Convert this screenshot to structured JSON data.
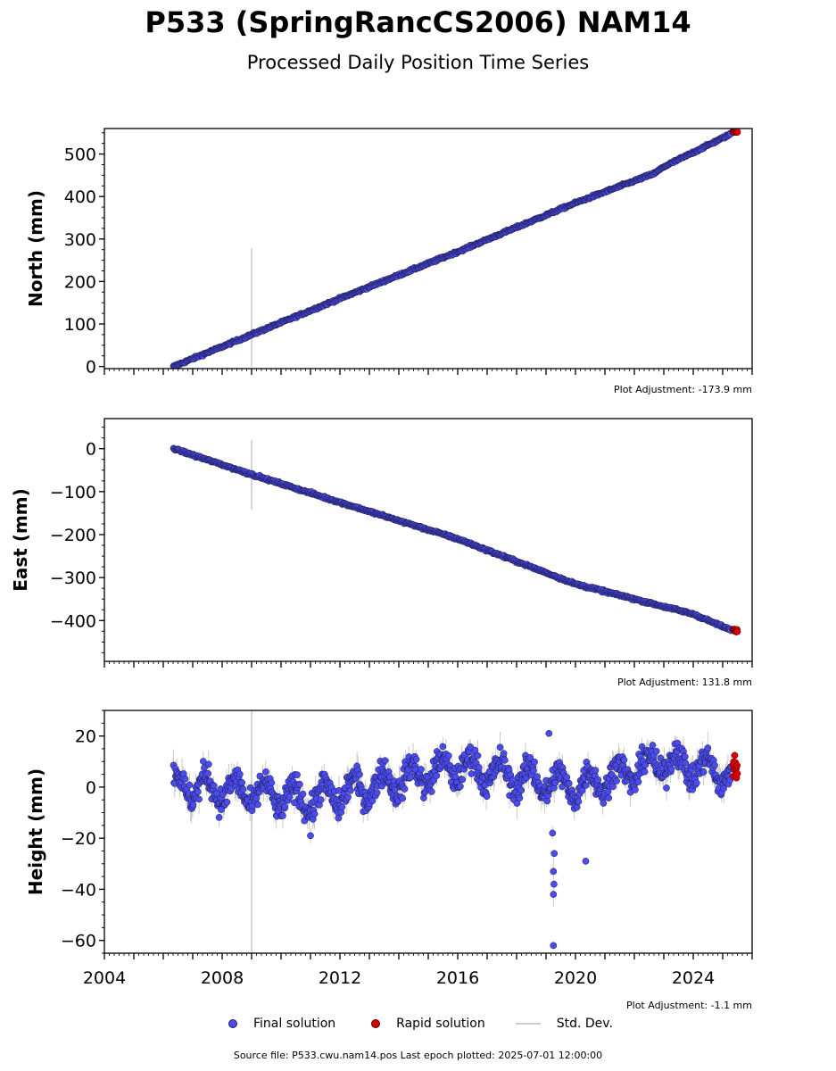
{
  "page": {
    "title": "P533 (SpringRancCS2006) NAM14",
    "subtitle": "Processed Daily Position Time Series",
    "source_text": "Source file: P533.cwu.nam14.pos  Last epoch plotted: 2025-07-01 12:00:00"
  },
  "legend": {
    "final": "Final solution",
    "rapid": "Rapid solution",
    "std": "Std. Dev."
  },
  "colors": {
    "final": "#4b4bf0",
    "final_edge": "#1a1a40",
    "rapid": "#dd0000",
    "std": "#bbbbbb"
  },
  "chart_data": [
    {
      "type": "scatter",
      "ylabel": "North (mm)",
      "adjustment": "Plot Adjustment: -173.9 mm",
      "xlim": [
        2004,
        2026
      ],
      "ylim": [
        -5,
        560
      ],
      "yticks": [
        0,
        100,
        200,
        300,
        400,
        500
      ],
      "ytick_labels": [
        "0",
        "100",
        "200",
        "300",
        "400",
        "500"
      ],
      "show_xtick_labels": false,
      "series": [
        {
          "name": "Final solution",
          "kind": "trend",
          "x": [
            2006.35,
            2009.0,
            2012.0,
            2016.0,
            2020.0,
            2022.7,
            2023.0,
            2025.3
          ],
          "y": [
            0,
            75,
            160,
            270,
            385,
            455,
            470,
            548
          ],
          "noise": 2.5
        },
        {
          "name": "Rapid solution",
          "kind": "cluster",
          "x": [
            2025.35,
            2025.5
          ],
          "y": [
            551,
            556
          ]
        }
      ],
      "std_outliers": [
        {
          "x": 2009.0,
          "y_low": 0,
          "y_high": 278
        }
      ],
      "std_typical": 3
    },
    {
      "type": "scatter",
      "ylabel": "East (mm)",
      "adjustment": "Plot Adjustment: 131.8 mm",
      "xlim": [
        2004,
        2026
      ],
      "ylim": [
        -495,
        70
      ],
      "yticks": [
        0,
        -100,
        -200,
        -300,
        -400
      ],
      "ytick_labels": [
        "0",
        "−100",
        "−200",
        "−300",
        "−400"
      ],
      "show_xtick_labels": false,
      "series": [
        {
          "name": "Final solution",
          "kind": "trend",
          "x": [
            2006.35,
            2009.0,
            2012.0,
            2016.0,
            2020.0,
            2024.0,
            2025.3
          ],
          "y": [
            0,
            -60,
            -125,
            -210,
            -315,
            -385,
            -423
          ],
          "noise": 2.5
        },
        {
          "name": "Rapid solution",
          "kind": "cluster",
          "x": [
            2025.35,
            2025.5
          ],
          "y": [
            -420,
            -427
          ]
        }
      ],
      "std_outliers": [
        {
          "x": 2009.0,
          "y_low": -142,
          "y_high": 20
        }
      ],
      "std_typical": 3
    },
    {
      "type": "scatter",
      "ylabel": "Height (mm)",
      "adjustment": "Plot Adjustment: -1.1 mm",
      "xlim": [
        2004,
        2026
      ],
      "ylim": [
        -65,
        30
      ],
      "yticks": [
        20,
        0,
        -20,
        -40,
        -60
      ],
      "ytick_labels": [
        "20",
        "0",
        "−20",
        "−40",
        "−60"
      ],
      "show_xtick_labels": true,
      "xticks": [
        2004,
        2008,
        2012,
        2016,
        2020,
        2024
      ],
      "xtick_labels": [
        "2004",
        "2008",
        "2012",
        "2016",
        "2020",
        "2024"
      ],
      "series": [
        {
          "name": "Final solution",
          "kind": "seasonal",
          "x_start": 2006.35,
          "x_end": 2025.3,
          "amplitude": 5,
          "spread": 5,
          "trend": [
            [
              2006.35,
              1
            ],
            [
              2011,
              -5
            ],
            [
              2016,
              8
            ],
            [
              2020,
              0
            ],
            [
              2023,
              10
            ],
            [
              2025.3,
              5
            ]
          ]
        },
        {
          "name": "Rapid solution",
          "kind": "cluster",
          "x": [
            2025.35,
            2025.5
          ],
          "y": [
            3,
            13
          ]
        }
      ],
      "outliers": [
        {
          "x": 2019.25,
          "y": -62
        },
        {
          "x": 2019.25,
          "y": -42
        },
        {
          "x": 2019.27,
          "y": -38
        },
        {
          "x": 2019.25,
          "y": -33
        },
        {
          "x": 2019.28,
          "y": -26
        },
        {
          "x": 2019.22,
          "y": -18
        },
        {
          "x": 2020.35,
          "y": -29
        },
        {
          "x": 2011.0,
          "y": -19
        },
        {
          "x": 2019.1,
          "y": 21
        }
      ],
      "std_outliers": [
        {
          "x": 2009.0,
          "y_low": -65,
          "y_high": 30
        }
      ],
      "std_typical": 4
    }
  ]
}
